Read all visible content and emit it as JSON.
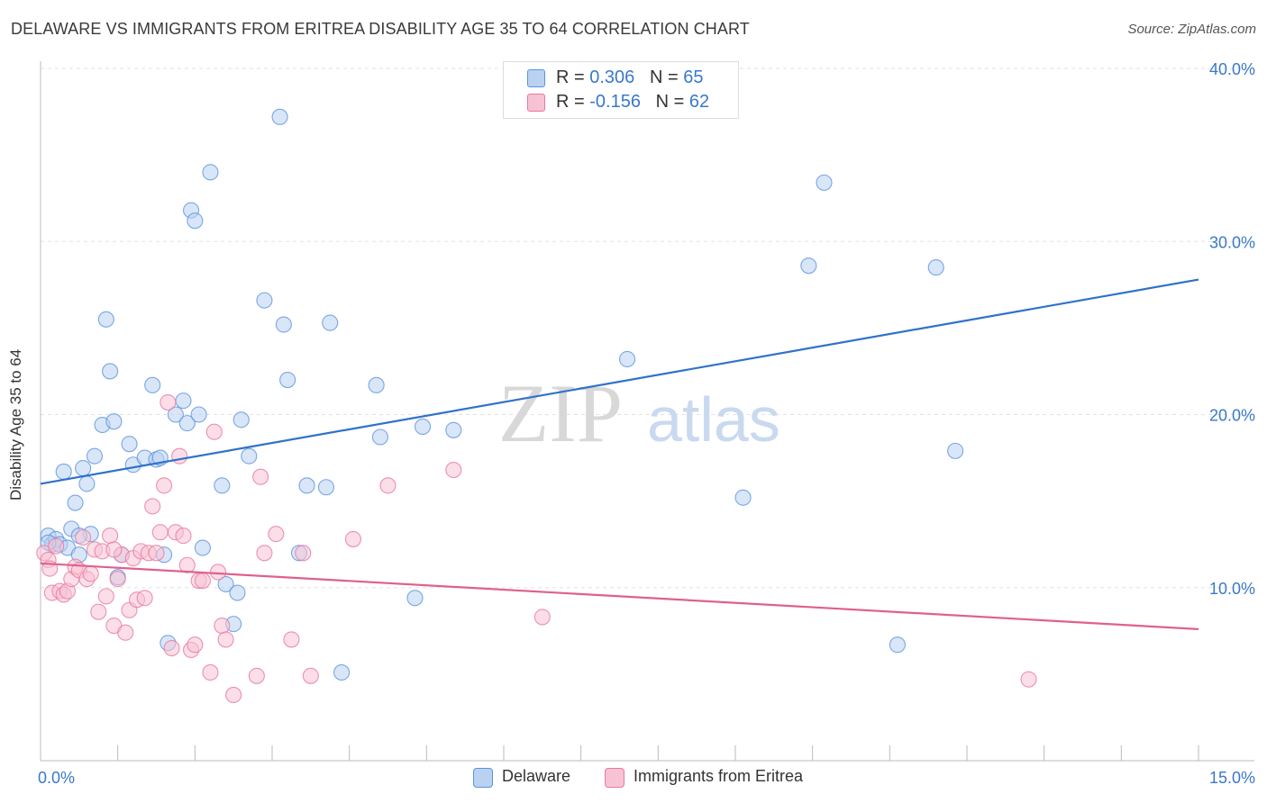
{
  "title": "DELAWARE VS IMMIGRANTS FROM ERITREA DISABILITY AGE 35 TO 64 CORRELATION CHART",
  "source": "Source: ZipAtlas.com",
  "watermark": {
    "zip": "ZIP",
    "atlas": "atlas"
  },
  "legend_top": [
    {
      "r_label": "R = ",
      "r_value": "0.306",
      "n_label": "N = ",
      "n_value": "65"
    },
    {
      "r_label": "R = ",
      "r_value": "-0.156",
      "n_label": "N = ",
      "n_value": "62"
    }
  ],
  "chart_data": {
    "type": "scatter",
    "ylabel": "Disability Age 35 to 64",
    "xlim": [
      0,
      15
    ],
    "ylim": [
      0,
      40
    ],
    "x_tick_labels": [
      {
        "value": 0,
        "label": "0.0%"
      },
      {
        "value": 15,
        "label": "15.0%"
      }
    ],
    "y_tick_labels": [
      {
        "value": 10,
        "label": "10.0%"
      },
      {
        "value": 20,
        "label": "20.0%"
      },
      {
        "value": 30,
        "label": "30.0%"
      },
      {
        "value": 40,
        "label": "40.0%"
      }
    ],
    "grid": true,
    "legend_placement": "bottom",
    "series": [
      {
        "name": "Delaware",
        "color": "#5a94de",
        "fill": "#b9d2f2",
        "trend": {
          "x": [
            0,
            15
          ],
          "y": [
            16,
            27.8
          ]
        },
        "points": [
          [
            0.1,
            13
          ],
          [
            0.15,
            12.5
          ],
          [
            0.2,
            12.8
          ],
          [
            0.25,
            12.5
          ],
          [
            0.3,
            16.7
          ],
          [
            0.35,
            12.3
          ],
          [
            0.4,
            13.4
          ],
          [
            0.45,
            14.9
          ],
          [
            0.5,
            11.9
          ],
          [
            0.55,
            16.9
          ],
          [
            0.6,
            16
          ],
          [
            0.65,
            13.1
          ],
          [
            0.7,
            17.6
          ],
          [
            0.8,
            19.4
          ],
          [
            0.85,
            25.5
          ],
          [
            0.9,
            22.5
          ],
          [
            0.95,
            19.6
          ],
          [
            1.05,
            11.9
          ],
          [
            1.0,
            10.6
          ],
          [
            1.15,
            18.3
          ],
          [
            1.2,
            17.1
          ],
          [
            1.35,
            17.5
          ],
          [
            1.45,
            21.7
          ],
          [
            1.5,
            17.4
          ],
          [
            1.6,
            11.9
          ],
          [
            1.65,
            6.8
          ],
          [
            1.75,
            20
          ],
          [
            1.85,
            20.8
          ],
          [
            1.9,
            19.5
          ],
          [
            1.95,
            31.8
          ],
          [
            2.0,
            31.2
          ],
          [
            2.05,
            20
          ],
          [
            2.1,
            12.3
          ],
          [
            2.2,
            34
          ],
          [
            2.35,
            15.9
          ],
          [
            2.4,
            10.2
          ],
          [
            2.5,
            7.9
          ],
          [
            2.55,
            9.7
          ],
          [
            2.6,
            19.7
          ],
          [
            2.7,
            17.6
          ],
          [
            2.9,
            26.6
          ],
          [
            3.1,
            37.2
          ],
          [
            3.15,
            25.2
          ],
          [
            3.2,
            22
          ],
          [
            3.35,
            12
          ],
          [
            3.45,
            15.9
          ],
          [
            3.7,
            15.8
          ],
          [
            3.75,
            25.3
          ],
          [
            3.9,
            5.1
          ],
          [
            4.35,
            21.7
          ],
          [
            4.4,
            18.7
          ],
          [
            4.85,
            9.4
          ],
          [
            4.95,
            19.3
          ],
          [
            5.35,
            19.1
          ],
          [
            7.5,
            38
          ],
          [
            7.6,
            23.2
          ],
          [
            9.1,
            15.2
          ],
          [
            9.95,
            28.6
          ],
          [
            10.15,
            33.4
          ],
          [
            11.1,
            6.7
          ],
          [
            11.6,
            28.5
          ],
          [
            11.85,
            17.9
          ],
          [
            0.1,
            12.6
          ],
          [
            0.5,
            13
          ],
          [
            1.55,
            17.5
          ]
        ]
      },
      {
        "name": "Immigrants from Eritrea",
        "color": "#e8789e",
        "fill": "#f7c3d4",
        "trend": {
          "x": [
            0,
            15
          ],
          "y": [
            11.4,
            7.6
          ]
        },
        "points": [
          [
            0.05,
            12
          ],
          [
            0.1,
            11.6
          ],
          [
            0.12,
            11.1
          ],
          [
            0.15,
            9.7
          ],
          [
            0.2,
            12.4
          ],
          [
            0.25,
            9.8
          ],
          [
            0.3,
            9.6
          ],
          [
            0.35,
            9.8
          ],
          [
            0.4,
            10.5
          ],
          [
            0.45,
            11.2
          ],
          [
            0.5,
            11
          ],
          [
            0.55,
            12.9
          ],
          [
            0.6,
            10.5
          ],
          [
            0.65,
            10.8
          ],
          [
            0.7,
            12.2
          ],
          [
            0.75,
            8.6
          ],
          [
            0.8,
            12.1
          ],
          [
            0.85,
            9.5
          ],
          [
            0.9,
            13
          ],
          [
            0.95,
            7.8
          ],
          [
            1.0,
            10.5
          ],
          [
            1.05,
            11.9
          ],
          [
            1.1,
            7.4
          ],
          [
            1.15,
            8.7
          ],
          [
            1.2,
            11.7
          ],
          [
            1.25,
            9.3
          ],
          [
            1.3,
            12.1
          ],
          [
            1.35,
            9.4
          ],
          [
            1.4,
            12
          ],
          [
            1.45,
            14.7
          ],
          [
            1.5,
            12
          ],
          [
            1.55,
            13.2
          ],
          [
            1.6,
            15.9
          ],
          [
            1.65,
            20.7
          ],
          [
            1.75,
            13.2
          ],
          [
            1.8,
            17.6
          ],
          [
            1.85,
            13
          ],
          [
            1.9,
            11.3
          ],
          [
            1.95,
            6.4
          ],
          [
            2.0,
            6.7
          ],
          [
            2.05,
            10.4
          ],
          [
            2.1,
            10.4
          ],
          [
            2.2,
            5.1
          ],
          [
            2.25,
            19
          ],
          [
            2.3,
            10.9
          ],
          [
            2.35,
            7.8
          ],
          [
            2.4,
            7
          ],
          [
            2.5,
            3.8
          ],
          [
            2.8,
            4.9
          ],
          [
            2.85,
            16.4
          ],
          [
            2.9,
            12
          ],
          [
            3.05,
            13.1
          ],
          [
            3.25,
            7
          ],
          [
            3.4,
            12
          ],
          [
            3.5,
            4.9
          ],
          [
            4.05,
            12.8
          ],
          [
            4.5,
            15.9
          ],
          [
            5.35,
            16.8
          ],
          [
            6.5,
            8.3
          ],
          [
            12.8,
            4.7
          ],
          [
            0.95,
            12.2
          ],
          [
            1.7,
            6.5
          ]
        ]
      }
    ]
  }
}
